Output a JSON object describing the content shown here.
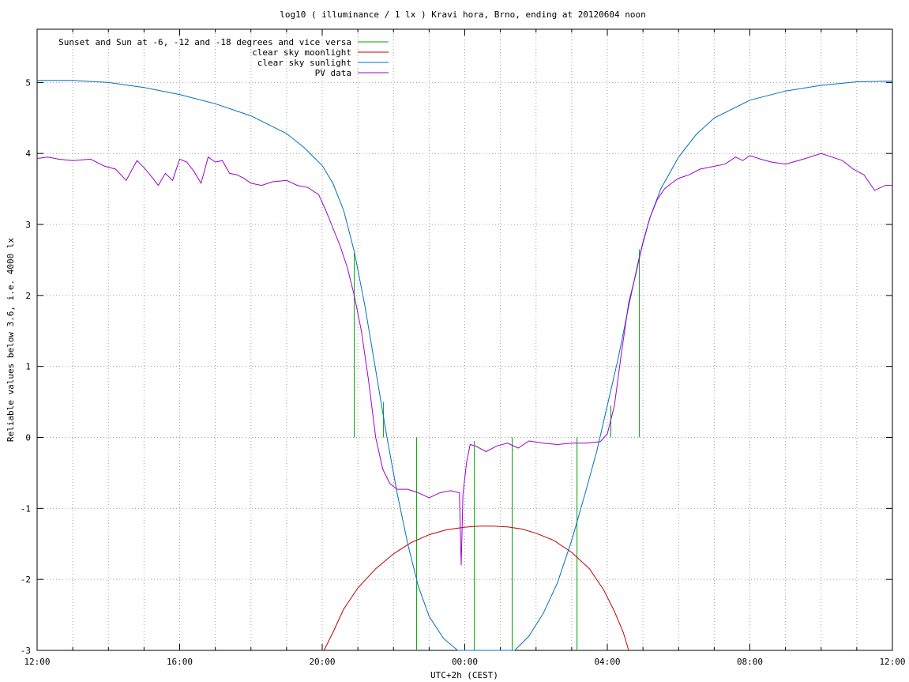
{
  "chart_data": {
    "type": "line",
    "title": "log10 ( illuminance / 1 lx ) Kravi hora, Brno, ending at 20120604 noon",
    "xlabel": "UTC+2h (CEST)",
    "ylabel": "Reliable values below 3.6, i.e. 4000 lx",
    "xlim": [
      12,
      36
    ],
    "ylim": [
      -3,
      5.75
    ],
    "x_ticks": [
      {
        "x": 12,
        "label": "12:00"
      },
      {
        "x": 16,
        "label": "16:00"
      },
      {
        "x": 20,
        "label": "20:00"
      },
      {
        "x": 24,
        "label": "00:00"
      },
      {
        "x": 28,
        "label": "04:00"
      },
      {
        "x": 32,
        "label": "08:00"
      },
      {
        "x": 36,
        "label": "12:00"
      }
    ],
    "x_minor_every": 1,
    "y_ticks": [
      {
        "y": -3,
        "label": "-3"
      },
      {
        "y": -2,
        "label": "-2"
      },
      {
        "y": -1,
        "label": "-1"
      },
      {
        "y": 0,
        "label": "0"
      },
      {
        "y": 1,
        "label": "1"
      },
      {
        "y": 2,
        "label": "2"
      },
      {
        "y": 3,
        "label": "3"
      },
      {
        "y": 4,
        "label": "4"
      },
      {
        "y": 5,
        "label": "5"
      }
    ],
    "grid": true,
    "legend_position": "top-left",
    "series": [
      {
        "name": "Sunset and Sun at -6, -12 and -18 degrees and vice versa",
        "color": "#00a000",
        "style": "vertical-markers",
        "markers": [
          {
            "x": 20.9,
            "y0": 0,
            "y1": 2.6
          },
          {
            "x": 21.72,
            "y0": 0,
            "y1": 0.5
          },
          {
            "x": 22.65,
            "y0": 0,
            "y1": -3
          },
          {
            "x": 24.27,
            "y0": -0.05,
            "y1": -3
          },
          {
            "x": 25.33,
            "y0": 0,
            "y1": -3
          },
          {
            "x": 27.15,
            "y0": 0,
            "y1": -3
          },
          {
            "x": 28.1,
            "y0": 0,
            "y1": 0.45
          },
          {
            "x": 28.9,
            "y0": 0,
            "y1": 2.65
          }
        ]
      },
      {
        "name": "clear sky moonlight",
        "color": "#c00000",
        "x": [
          20.05,
          20.3,
          20.6,
          21.0,
          21.5,
          22.0,
          22.5,
          23.0,
          23.5,
          24.0,
          24.4,
          24.8,
          25.2,
          25.6,
          26.0,
          26.5,
          27.0,
          27.5,
          27.9,
          28.2,
          28.45,
          28.6
        ],
        "y": [
          -3,
          -2.75,
          -2.42,
          -2.12,
          -1.85,
          -1.64,
          -1.48,
          -1.37,
          -1.3,
          -1.265,
          -1.25,
          -1.25,
          -1.26,
          -1.29,
          -1.35,
          -1.45,
          -1.62,
          -1.85,
          -2.15,
          -2.45,
          -2.75,
          -3
        ]
      },
      {
        "name": "clear sky sunlight",
        "color": "#0070c0",
        "x": [
          12,
          13,
          14,
          15,
          16,
          17,
          18,
          19,
          19.5,
          20,
          20.3,
          20.6,
          20.9,
          21.2,
          21.5,
          21.8,
          22.1,
          22.4,
          22.7,
          23.0,
          23.4,
          23.8,
          24.2,
          24.6,
          25.0,
          25.4,
          25.8,
          26.2,
          26.6,
          27.0,
          27.4,
          27.7,
          28.0,
          28.3,
          28.6,
          28.9,
          29.2,
          29.5,
          30.0,
          30.5,
          31.0,
          32.0,
          33.0,
          34.0,
          35.0,
          36.0
        ],
        "y": [
          5.03,
          5.03,
          5.0,
          4.93,
          4.83,
          4.7,
          4.53,
          4.28,
          4.08,
          3.83,
          3.58,
          3.2,
          2.62,
          1.85,
          0.95,
          0.05,
          -0.78,
          -1.5,
          -2.1,
          -2.52,
          -2.83,
          -3.05,
          -3.18,
          -3.2,
          -3.15,
          -3.02,
          -2.8,
          -2.48,
          -2.05,
          -1.45,
          -0.75,
          -0.2,
          0.45,
          1.1,
          1.85,
          2.55,
          3.1,
          3.5,
          3.95,
          4.27,
          4.5,
          4.75,
          4.88,
          4.96,
          5.01,
          5.02
        ]
      },
      {
        "name": "PV data",
        "color": "#a000d0",
        "x": [
          12.0,
          12.3,
          12.6,
          13.0,
          13.5,
          13.9,
          14.2,
          14.5,
          14.8,
          15.0,
          15.2,
          15.4,
          15.6,
          15.8,
          16.0,
          16.2,
          16.4,
          16.6,
          16.8,
          17.0,
          17.2,
          17.4,
          17.6,
          17.8,
          18.0,
          18.3,
          18.6,
          19.0,
          19.3,
          19.6,
          19.9,
          20.1,
          20.3,
          20.5,
          20.7,
          20.9,
          21.1,
          21.3,
          21.5,
          21.7,
          21.9,
          22.1,
          22.4,
          22.7,
          23.0,
          23.3,
          23.6,
          23.85,
          23.9,
          23.95,
          24.05,
          24.15,
          24.3,
          24.6,
          24.9,
          25.2,
          25.5,
          25.8,
          26.2,
          26.6,
          27.0,
          27.4,
          27.8,
          28.0,
          28.2,
          28.4,
          28.6,
          28.8,
          29.0,
          29.2,
          29.4,
          29.6,
          29.8,
          30.0,
          30.3,
          30.6,
          31.0,
          31.3,
          31.6,
          31.8,
          32.0,
          32.3,
          32.6,
          33.0,
          33.5,
          34.0,
          34.3,
          34.6,
          34.9,
          35.2,
          35.5,
          35.8,
          36.0
        ],
        "y": [
          3.93,
          3.95,
          3.92,
          3.9,
          3.92,
          3.82,
          3.78,
          3.62,
          3.9,
          3.8,
          3.68,
          3.55,
          3.72,
          3.62,
          3.92,
          3.88,
          3.75,
          3.58,
          3.95,
          3.88,
          3.9,
          3.72,
          3.7,
          3.65,
          3.58,
          3.55,
          3.6,
          3.62,
          3.55,
          3.52,
          3.42,
          3.2,
          2.95,
          2.7,
          2.4,
          2.0,
          1.5,
          0.8,
          0.0,
          -0.45,
          -0.65,
          -0.73,
          -0.73,
          -0.78,
          -0.85,
          -0.78,
          -0.75,
          -0.78,
          -1.8,
          -0.8,
          -0.35,
          -0.1,
          -0.12,
          -0.2,
          -0.12,
          -0.08,
          -0.15,
          -0.05,
          -0.08,
          -0.1,
          -0.08,
          -0.08,
          -0.06,
          0.05,
          0.45,
          1.2,
          1.9,
          2.3,
          2.75,
          3.1,
          3.35,
          3.5,
          3.58,
          3.65,
          3.7,
          3.78,
          3.82,
          3.85,
          3.95,
          3.9,
          3.97,
          3.92,
          3.88,
          3.85,
          3.92,
          4.0,
          3.95,
          3.9,
          3.78,
          3.7,
          3.48,
          3.55,
          3.55
        ]
      }
    ]
  }
}
